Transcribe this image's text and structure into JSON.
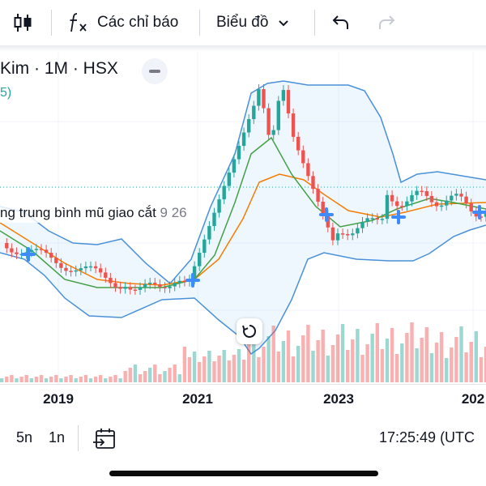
{
  "toolbar": {
    "indicators_label": "Các chỉ báo",
    "chart_label": "Biểu đồ"
  },
  "symbol": {
    "title": "Kim · 1M · HSX"
  },
  "study_legend": {
    "text": "5)"
  },
  "ema_legend": {
    "label": "ng trung bình mũ giao cắt",
    "values": "9 26"
  },
  "xaxis": {
    "labels": [
      "2019",
      "2021",
      "2023",
      "202"
    ]
  },
  "bottom_bar": {
    "ranges": [
      "5n",
      "1n"
    ],
    "clock": "17:25:49 (UTC"
  },
  "colors": {
    "up": "#26a69a",
    "down": "#ef5350",
    "bollinger": "#4a90d9",
    "ema_fast": "#43a047",
    "ema_slow": "#f57c00",
    "cross_marker": "#3d8bfd"
  },
  "icons": {
    "chart_type": "candlestick-icon",
    "indicators": "fx-icon",
    "chevron": "chevron-down-icon",
    "undo": "undo-icon",
    "redo": "redo-icon",
    "collapse": "minus-icon",
    "reset": "reset-icon",
    "date_range": "calendar-go-to-icon"
  }
}
